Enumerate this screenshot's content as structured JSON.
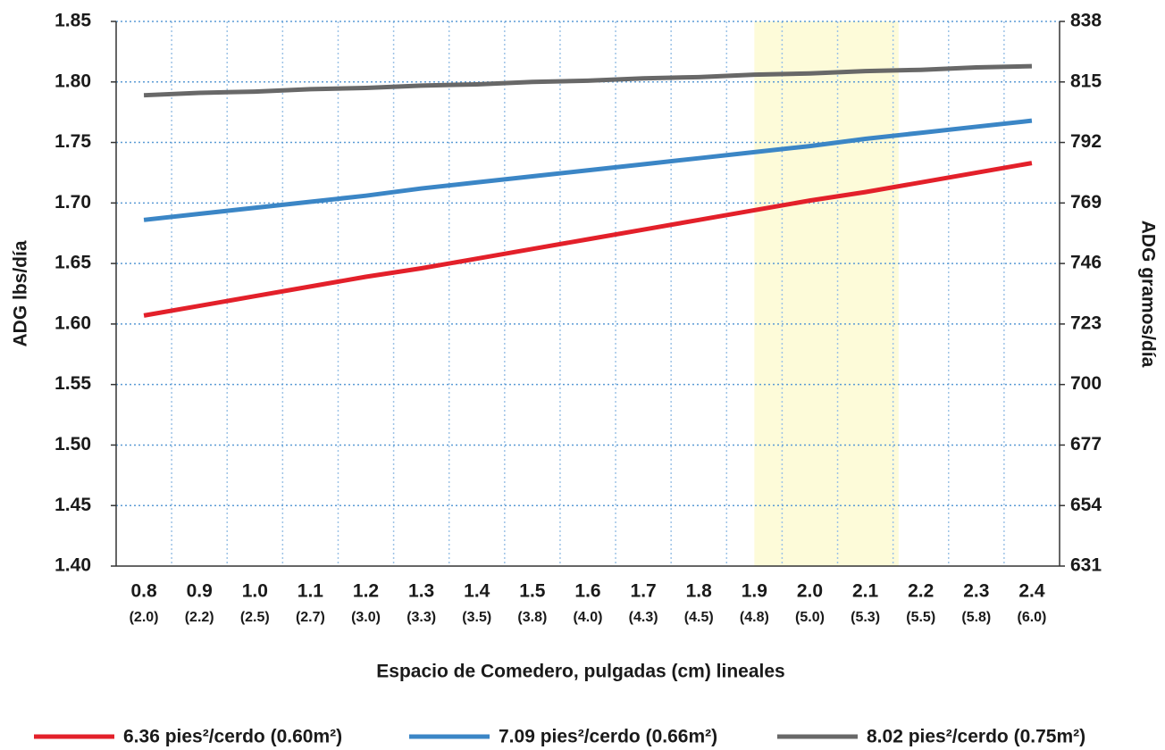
{
  "chart_data": {
    "type": "line",
    "x_label": "Espacio de Comedero, pulgadas (cm) lineales",
    "y_label": "ADG lbs/día",
    "y2_label": "ADG gramos/día",
    "x": [
      0.8,
      0.9,
      1.0,
      1.1,
      1.2,
      1.3,
      1.4,
      1.5,
      1.6,
      1.7,
      1.8,
      1.9,
      2.0,
      2.1,
      2.2,
      2.3,
      2.4
    ],
    "xlim": [
      0.75,
      2.45
    ],
    "xticks": [
      0.8,
      0.9,
      {
        "value": 1.0,
        "label": "1.0"
      },
      1.1,
      1.2,
      1.3,
      1.4,
      1.5,
      1.6,
      1.7,
      1.8,
      1.9,
      {
        "value": 2.0,
        "label": "2.0"
      },
      2.1,
      2.2,
      2.3,
      2.4
    ],
    "xtick_sublabels": [
      "(2.0)",
      "(2.2)",
      "(2.5)",
      "(2.7)",
      "(3.0)",
      "(3.3)",
      "(3.5)",
      "(3.8)",
      "(4.0)",
      "(4.3)",
      "(4.5)",
      "(4.8)",
      "(5.0)",
      "(5.3)",
      "(5.5)",
      "(5.8)",
      "(6.0)"
    ],
    "ylim": [
      1.4,
      1.85
    ],
    "yticks": [
      {
        "value": 1.4,
        "label": "1.40"
      },
      1.45,
      {
        "value": 1.5,
        "label": "1.50"
      },
      1.55,
      {
        "value": 1.6,
        "label": "1.60"
      },
      1.65,
      {
        "value": 1.7,
        "label": "1.70"
      },
      1.75,
      {
        "value": 1.8,
        "label": "1.80"
      },
      1.85
    ],
    "y2lim": [
      631,
      838
    ],
    "y2ticks": [
      631,
      654,
      677,
      700,
      723,
      746,
      769,
      792,
      815,
      838
    ],
    "highlight": [
      1.9,
      2.16
    ],
    "highlight_color": "#fdfbd9",
    "grid": true,
    "series": [
      {
        "name": "6.36 pies²/cerdo (0.60m²)",
        "color": "#e3202a",
        "values": [
          1.607,
          1.615,
          1.623,
          1.631,
          1.639,
          1.646,
          1.654,
          1.662,
          1.67,
          1.678,
          1.686,
          1.694,
          1.702,
          1.709,
          1.717,
          1.725,
          1.733
        ]
      },
      {
        "name": "7.09 pies²/cerdo (0.66m²)",
        "color": "#3b86c6",
        "values": [
          1.686,
          1.691,
          1.696,
          1.701,
          1.706,
          1.712,
          1.717,
          1.722,
          1.727,
          1.732,
          1.737,
          1.742,
          1.747,
          1.753,
          1.758,
          1.763,
          1.768
        ]
      },
      {
        "name": "8.02 pies²/cerdo (0.75m²)",
        "color": "#686868",
        "values": [
          1.789,
          1.791,
          1.792,
          1.794,
          1.795,
          1.797,
          1.798,
          1.8,
          1.801,
          1.803,
          1.804,
          1.806,
          1.807,
          1.809,
          1.81,
          1.812,
          1.813
        ]
      }
    ]
  }
}
